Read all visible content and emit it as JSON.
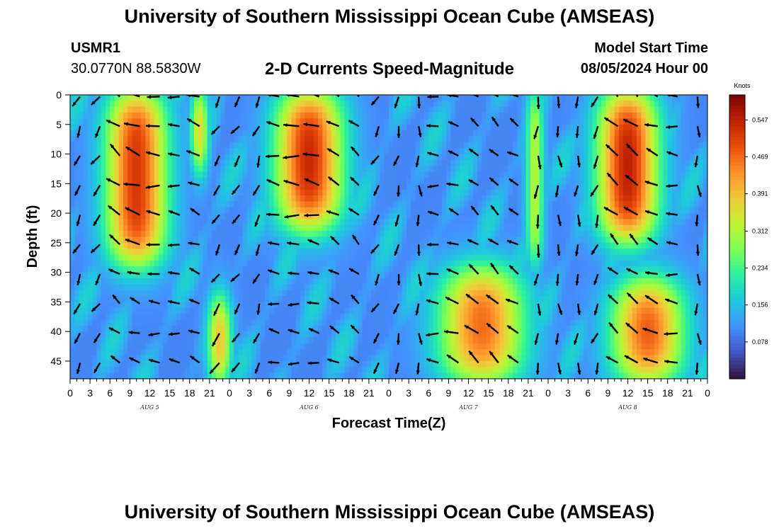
{
  "header": {
    "title": "University of Southern Mississippi Ocean Cube (AMSEAS)",
    "station_id": "USMR1",
    "station_coords": "30.0770N  88.5830W",
    "subtitle": "2-D Currents Speed-Magnitude",
    "model_start_label": "Model Start Time",
    "model_start_value": "08/05/2024 Hour 00"
  },
  "footer": {
    "title": "University of Southern Mississippi Ocean Cube (AMSEAS)"
  },
  "chart_data": {
    "type": "heatmap",
    "title": "2-D Currents Speed-Magnitude",
    "xlabel": "Forecast Time(Z)",
    "ylabel": "Depth (ft)",
    "xlim_hours": [
      0,
      96
    ],
    "ylim_ft": [
      0,
      48
    ],
    "x_tick_hours": [
      0,
      3,
      6,
      9,
      12,
      15,
      18,
      21,
      24,
      27,
      30,
      33,
      36,
      39,
      42,
      45,
      48,
      51,
      54,
      57,
      60,
      63,
      66,
      69,
      72,
      75,
      78,
      81,
      84,
      87,
      90,
      93,
      96
    ],
    "x_tick_labels": [
      "0",
      "3",
      "6",
      "9",
      "12",
      "15",
      "18",
      "21",
      "0",
      "3",
      "6",
      "9",
      "12",
      "15",
      "18",
      "21",
      "0",
      "3",
      "6",
      "9",
      "12",
      "15",
      "18",
      "21",
      "0",
      "3",
      "6",
      "9",
      "12",
      "15",
      "18",
      "21",
      "0"
    ],
    "day_labels": [
      {
        "hour": 12,
        "label": "AUG 5"
      },
      {
        "hour": 36,
        "label": "AUG 6"
      },
      {
        "hour": 60,
        "label": "AUG 7"
      },
      {
        "hour": 84,
        "label": "AUG 8"
      }
    ],
    "y_ticks": [
      0,
      5,
      10,
      15,
      20,
      25,
      30,
      35,
      40,
      45
    ],
    "colorbar": {
      "unit": "Knots",
      "ticks": [
        0.078,
        0.156,
        0.234,
        0.312,
        0.391,
        0.469,
        0.547
      ],
      "tick_labels": [
        "0.078",
        "0.156",
        "0.234",
        "0.312",
        "0.391",
        "0.469",
        "0.547"
      ],
      "range": [
        0.0,
        0.6
      ],
      "colors": [
        "#30123b",
        "#4454c4",
        "#4490fe",
        "#1fc8de",
        "#29efa2",
        "#7dff56",
        "#c1f334",
        "#f1ca3a",
        "#fe922a",
        "#ea4e0d",
        "#be2102",
        "#7a0403"
      ]
    },
    "speed_features_knots": [
      {
        "t_center": 10,
        "t_width": 5,
        "d_top": 0,
        "d_bottom": 28,
        "speed": 0.52,
        "note": "surface jet AUG 5 early"
      },
      {
        "t_center": 36,
        "t_width": 5.5,
        "d_top": 0,
        "d_bottom": 22,
        "speed": 0.54,
        "note": "surface jet AUG 6"
      },
      {
        "t_center": 84,
        "t_width": 5,
        "d_top": 0,
        "d_bottom": 24,
        "speed": 0.55,
        "note": "surface jet AUG 8"
      },
      {
        "t_center": 62,
        "t_width": 7,
        "d_top": 30,
        "d_bottom": 48,
        "speed": 0.48,
        "note": "subsurface jet AUG 7"
      },
      {
        "t_center": 87,
        "t_width": 6,
        "d_top": 32,
        "d_bottom": 48,
        "speed": 0.5,
        "note": "subsurface jet AUG 8"
      },
      {
        "t_center": 22.5,
        "t_width": 2,
        "d_top": 35,
        "d_bottom": 48,
        "speed": 0.42,
        "note": "bottom core late AUG 5"
      },
      {
        "t_center": 19.5,
        "t_width": 1.5,
        "d_top": 0,
        "d_bottom": 12,
        "speed": 0.4,
        "note": "surface band 18Z AUG 5"
      },
      {
        "t_center": 70,
        "t_width": 1.5,
        "d_top": 0,
        "d_bottom": 28,
        "speed": 0.32,
        "note": "surface band 21Z AUG 7"
      }
    ]
  }
}
